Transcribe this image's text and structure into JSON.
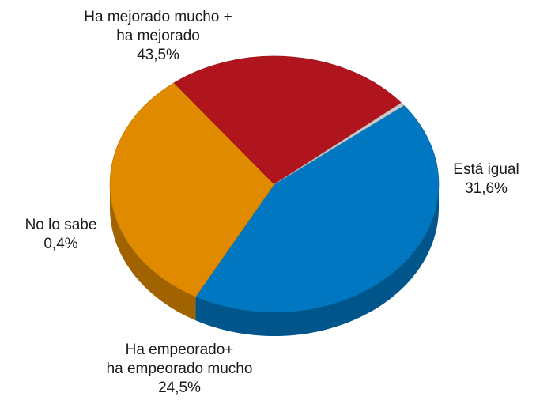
{
  "chart_data": {
    "type": "pie",
    "style": "3d",
    "slices": [
      {
        "label_lines": [
          "Ha mejorado mucho +",
          "ha mejorado"
        ],
        "value_text": "43,5%",
        "value": 43.5,
        "color": "#0077c0"
      },
      {
        "label_lines": [
          "Está igual"
        ],
        "value_text": "31,6%",
        "value": 31.6,
        "color": "#e08a00"
      },
      {
        "label_lines": [
          "Ha empeorado+",
          "ha empeorado mucho"
        ],
        "value_text": "24,5%",
        "value": 24.5,
        "color": "#b0141c"
      },
      {
        "label_lines": [
          "No lo sabe"
        ],
        "value_text": "0,4%",
        "value": 0.4,
        "color": "#c9c9c9"
      }
    ]
  }
}
